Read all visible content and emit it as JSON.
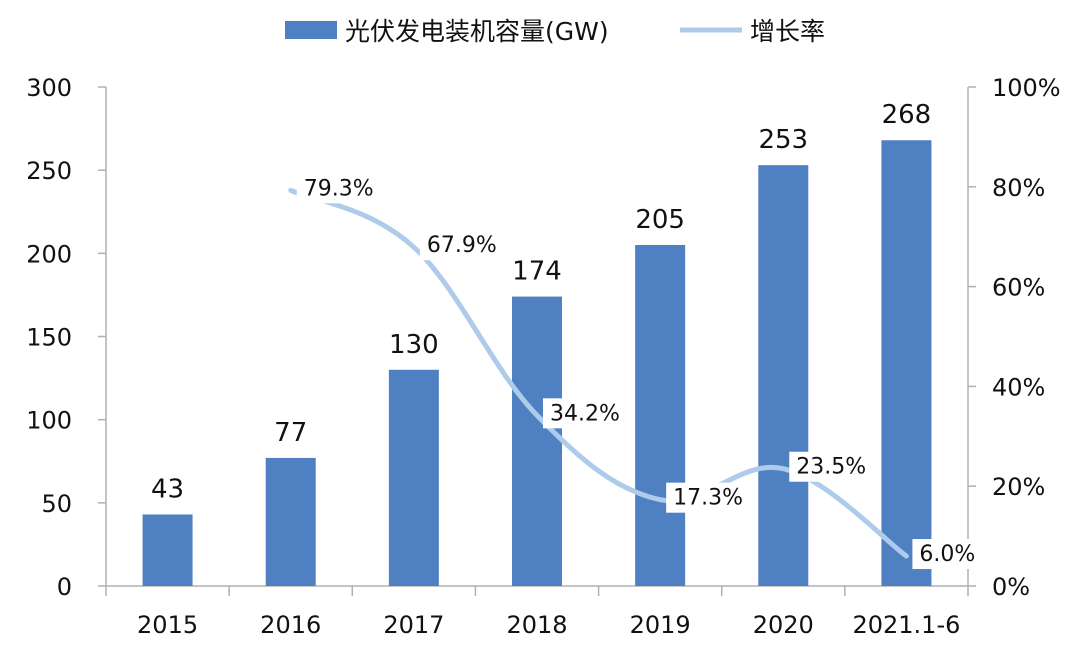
{
  "chart_data": {
    "type": "bar",
    "categories": [
      "2015",
      "2016",
      "2017",
      "2018",
      "2019",
      "2020",
      "2021.1-6"
    ],
    "series": [
      {
        "name": "光伏发电装机容量(GW)",
        "type": "bar",
        "axis": "left",
        "values": [
          43,
          77,
          130,
          174,
          205,
          253,
          268
        ],
        "labels": [
          "43",
          "77",
          "130",
          "174",
          "205",
          "253",
          "268"
        ]
      },
      {
        "name": "增长率",
        "type": "line",
        "axis": "right",
        "values": [
          null,
          79.3,
          67.9,
          34.2,
          17.3,
          23.5,
          6.0
        ],
        "labels": [
          "",
          "79.3%",
          "67.9%",
          "34.2%",
          "17.3%",
          "23.5%",
          "6.0%"
        ]
      }
    ],
    "y_left": {
      "ylim": [
        0,
        300
      ],
      "ticks": [
        "0",
        "50",
        "100",
        "150",
        "200",
        "250",
        "300"
      ]
    },
    "y_right": {
      "ylim": [
        0,
        100
      ],
      "ticks": [
        "0%",
        "20%",
        "40%",
        "60%",
        "80%",
        "100%"
      ]
    },
    "colors": {
      "bar": "#4f81c2",
      "line": "#aecbeb",
      "axis": "#b0b0b0"
    }
  }
}
